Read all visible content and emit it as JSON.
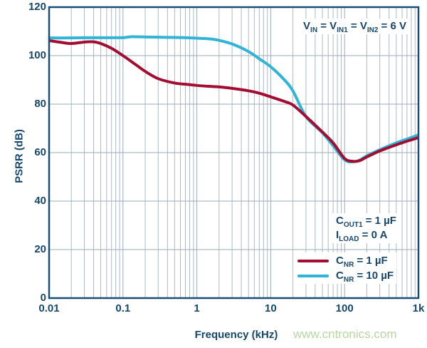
{
  "watermark": {
    "text": "www.cntronics.com",
    "color": "#b7d7a1"
  },
  "colors": {
    "text_navy": "#17476b",
    "axis_border": "#1c4e74",
    "grid_minor": "#aeb9c5",
    "grid_major": "#9aaabb",
    "background": "#ffffff"
  },
  "annotations": {
    "vin": [
      {
        "t": "V"
      },
      {
        "s": "IN"
      },
      {
        "t": " = V"
      },
      {
        "s": "IN1"
      },
      {
        "t": " = V"
      },
      {
        "s": "IN2"
      },
      {
        "t": " = 6 V"
      }
    ],
    "conditions": [
      [
        {
          "t": "C"
        },
        {
          "s": "OUT1"
        },
        {
          "t": " = 1 µF"
        }
      ],
      [
        {
          "t": "I"
        },
        {
          "s": "LOAD"
        },
        {
          "t": " = 0 A"
        }
      ]
    ]
  },
  "legend": {
    "entries": [
      {
        "label": [
          {
            "t": "C"
          },
          {
            "s": "NR"
          },
          {
            "t": " = 1 µF"
          }
        ],
        "series": 0
      },
      {
        "label": [
          {
            "t": "C"
          },
          {
            "s": "NR"
          },
          {
            "t": " = 10 µF"
          }
        ],
        "series": 1
      }
    ]
  },
  "chart_data": {
    "type": "line",
    "x_scale": "log",
    "title": "",
    "xlabel": "Frequency (kHz)",
    "ylabel": "PSRR (dB)",
    "xlim": [
      0.01,
      1000
    ],
    "ylim": [
      0,
      120
    ],
    "grid": true,
    "legend_position": "lower right",
    "x_ticks": [
      {
        "v": 0.01,
        "label": "0.01"
      },
      {
        "v": 0.1,
        "label": "0.1"
      },
      {
        "v": 1,
        "label": "1"
      },
      {
        "v": 10,
        "label": "10"
      },
      {
        "v": 100,
        "label": "100"
      },
      {
        "v": 1000,
        "label": "1k"
      }
    ],
    "y_ticks": [
      0,
      20,
      40,
      60,
      80,
      100,
      120
    ],
    "series": [
      {
        "name": "CNR = 1 µF",
        "color": "#a30d32",
        "points": [
          [
            0.01,
            106.2
          ],
          [
            0.015,
            105.4
          ],
          [
            0.02,
            105.0
          ],
          [
            0.03,
            105.6
          ],
          [
            0.04,
            105.7
          ],
          [
            0.05,
            105.0
          ],
          [
            0.07,
            103.0
          ],
          [
            0.1,
            100.0
          ],
          [
            0.15,
            96.2
          ],
          [
            0.2,
            93.5
          ],
          [
            0.3,
            90.5
          ],
          [
            0.5,
            88.7
          ],
          [
            0.7,
            88.2
          ],
          [
            1,
            87.7
          ],
          [
            1.5,
            87.3
          ],
          [
            2,
            87.1
          ],
          [
            3,
            86.5
          ],
          [
            5,
            85.5
          ],
          [
            7,
            84.5
          ],
          [
            10,
            83.0
          ],
          [
            15,
            81.2
          ],
          [
            20,
            79.6
          ],
          [
            30,
            74.9
          ],
          [
            50,
            68.5
          ],
          [
            70,
            64.0
          ],
          [
            100,
            57.6
          ],
          [
            130,
            56.4
          ],
          [
            160,
            56.7
          ],
          [
            200,
            58.2
          ],
          [
            300,
            60.7
          ],
          [
            500,
            63.2
          ],
          [
            700,
            64.7
          ],
          [
            1000,
            66.2
          ]
        ]
      },
      {
        "name": "CNR = 10 µF",
        "color": "#31b4d6",
        "points": [
          [
            0.01,
            107.3
          ],
          [
            0.02,
            107.3
          ],
          [
            0.03,
            107.4
          ],
          [
            0.05,
            107.4
          ],
          [
            0.07,
            107.4
          ],
          [
            0.1,
            107.4
          ],
          [
            0.13,
            107.8
          ],
          [
            0.2,
            107.7
          ],
          [
            0.3,
            107.6
          ],
          [
            0.5,
            107.5
          ],
          [
            0.7,
            107.4
          ],
          [
            1,
            107.2
          ],
          [
            1.5,
            106.9
          ],
          [
            2,
            106.3
          ],
          [
            3,
            104.8
          ],
          [
            5,
            101.7
          ],
          [
            7,
            98.7
          ],
          [
            10,
            95.4
          ],
          [
            15,
            90.3
          ],
          [
            20,
            85.4
          ],
          [
            30,
            74.9
          ],
          [
            50,
            68.2
          ],
          [
            70,
            62.8
          ],
          [
            100,
            57.0
          ],
          [
            130,
            56.2
          ],
          [
            160,
            56.9
          ],
          [
            200,
            58.7
          ],
          [
            300,
            61.2
          ],
          [
            500,
            64.0
          ],
          [
            700,
            65.6
          ],
          [
            1000,
            67.3
          ]
        ]
      }
    ]
  }
}
